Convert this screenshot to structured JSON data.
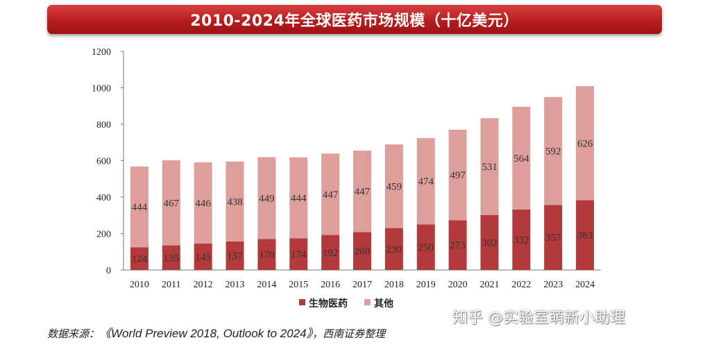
{
  "chart_data": {
    "type": "bar",
    "stacked": true,
    "title": "2010-2024年全球医药市场规模（十亿美元）",
    "categories": [
      "2010",
      "2011",
      "2012",
      "2013",
      "2014",
      "2015",
      "2016",
      "2017",
      "2018",
      "2019",
      "2020",
      "2021",
      "2022",
      "2023",
      "2024"
    ],
    "series": [
      {
        "name": "生物医药",
        "color": "#b23a3a",
        "values": [
          124,
          135,
          145,
          157,
          170,
          174,
          192,
          208,
          230,
          250,
          273,
          302,
          332,
          357,
          383
        ]
      },
      {
        "name": "其他",
        "color": "#dd9e9c",
        "values": [
          444,
          467,
          446,
          438,
          449,
          444,
          447,
          447,
          459,
          474,
          497,
          531,
          564,
          592,
          626
        ]
      }
    ],
    "ylim": [
      0,
      1200
    ],
    "yticks": [
      0,
      200,
      400,
      600,
      800,
      1000,
      1200
    ],
    "grid": false,
    "legend_position": "bottom"
  },
  "source": {
    "prefix": "数据来源：",
    "title": "《World Preview 2018, Outlook to 2024》",
    "suffix": "，西南证券整理"
  },
  "watermark": "知乎 @实验室萌新小助理"
}
